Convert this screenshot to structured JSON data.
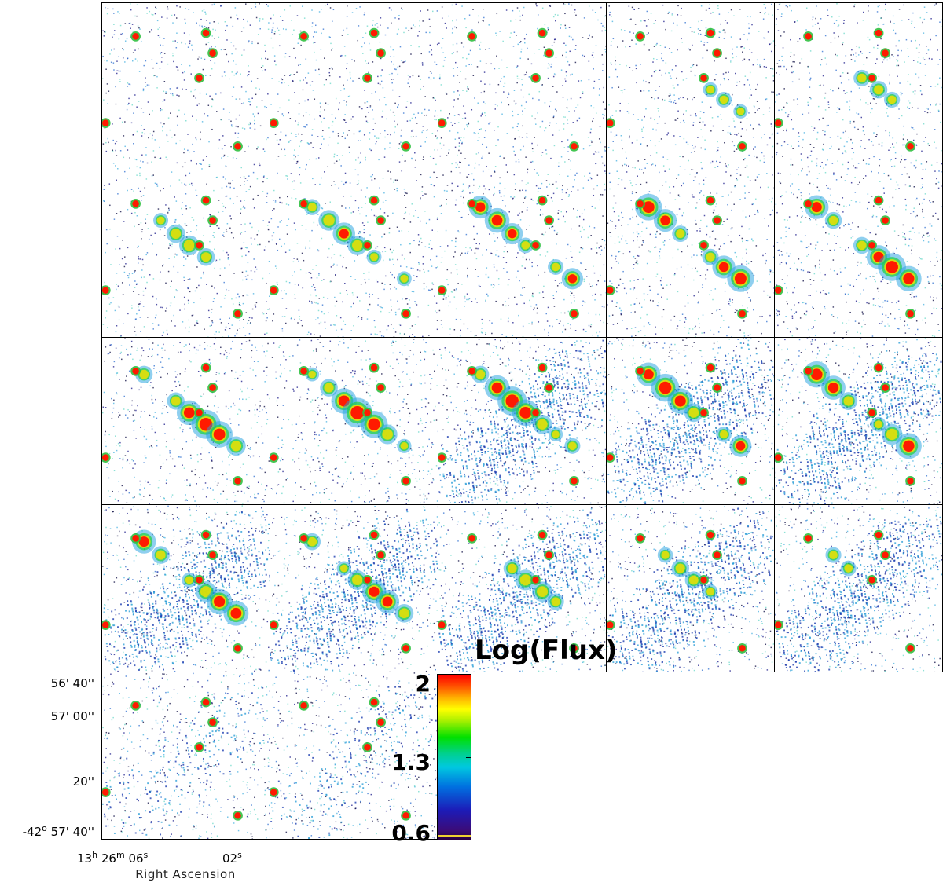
{
  "colorbar": {
    "title": "Log(Flux)",
    "ticks": [
      "2",
      "1.3",
      "0.6"
    ]
  },
  "axes": {
    "x_title": "Right Ascension",
    "x_ticks": [
      {
        "h": "13",
        "m": "26",
        "s": "06"
      },
      {
        "s": "02"
      }
    ],
    "y_ticks": [
      {
        "deg": "",
        "min": "56'",
        "sec": "40''"
      },
      {
        "deg": "",
        "min": "57'",
        "sec": "00''"
      },
      {
        "deg": "",
        "min": "",
        "sec": "20''"
      },
      {
        "deg": "-42",
        "min": "57'",
        "sec": "40''"
      }
    ],
    "h_sup": "h",
    "m_sup": "m",
    "s_sup": "s",
    "deg_sup": "o"
  },
  "channels": [
    {
      "level": 0.08,
      "shape": "none"
    },
    {
      "level": 0.12,
      "shape": "ridge"
    },
    {
      "level": 0.18,
      "shape": "ridge"
    },
    {
      "level": 0.28,
      "shape": "ridge"
    },
    {
      "level": 0.38,
      "shape": "ridge"
    },
    {
      "level": 0.5,
      "shape": "ridge"
    },
    {
      "level": 0.62,
      "shape": "ridge"
    },
    {
      "level": 0.74,
      "shape": "ridge"
    },
    {
      "level": 0.84,
      "shape": "ridge"
    },
    {
      "level": 0.9,
      "shape": "ridge"
    },
    {
      "level": 0.96,
      "shape": "ridge"
    },
    {
      "level": 1.0,
      "shape": "ridge"
    },
    {
      "level": 0.96,
      "shape": "ridge-diffuse"
    },
    {
      "level": 0.9,
      "shape": "ridge-diffuse"
    },
    {
      "level": 0.82,
      "shape": "ridge-diffuse"
    },
    {
      "level": 0.8,
      "shape": "diffuse"
    },
    {
      "level": 0.72,
      "shape": "diffuse"
    },
    {
      "level": 0.55,
      "shape": "diffuse"
    },
    {
      "level": 0.4,
      "shape": "diffuse"
    },
    {
      "level": 0.3,
      "shape": "diffuse"
    },
    {
      "level": 0.2,
      "shape": "faint"
    },
    {
      "level": 0.1,
      "shape": "faint"
    }
  ]
}
